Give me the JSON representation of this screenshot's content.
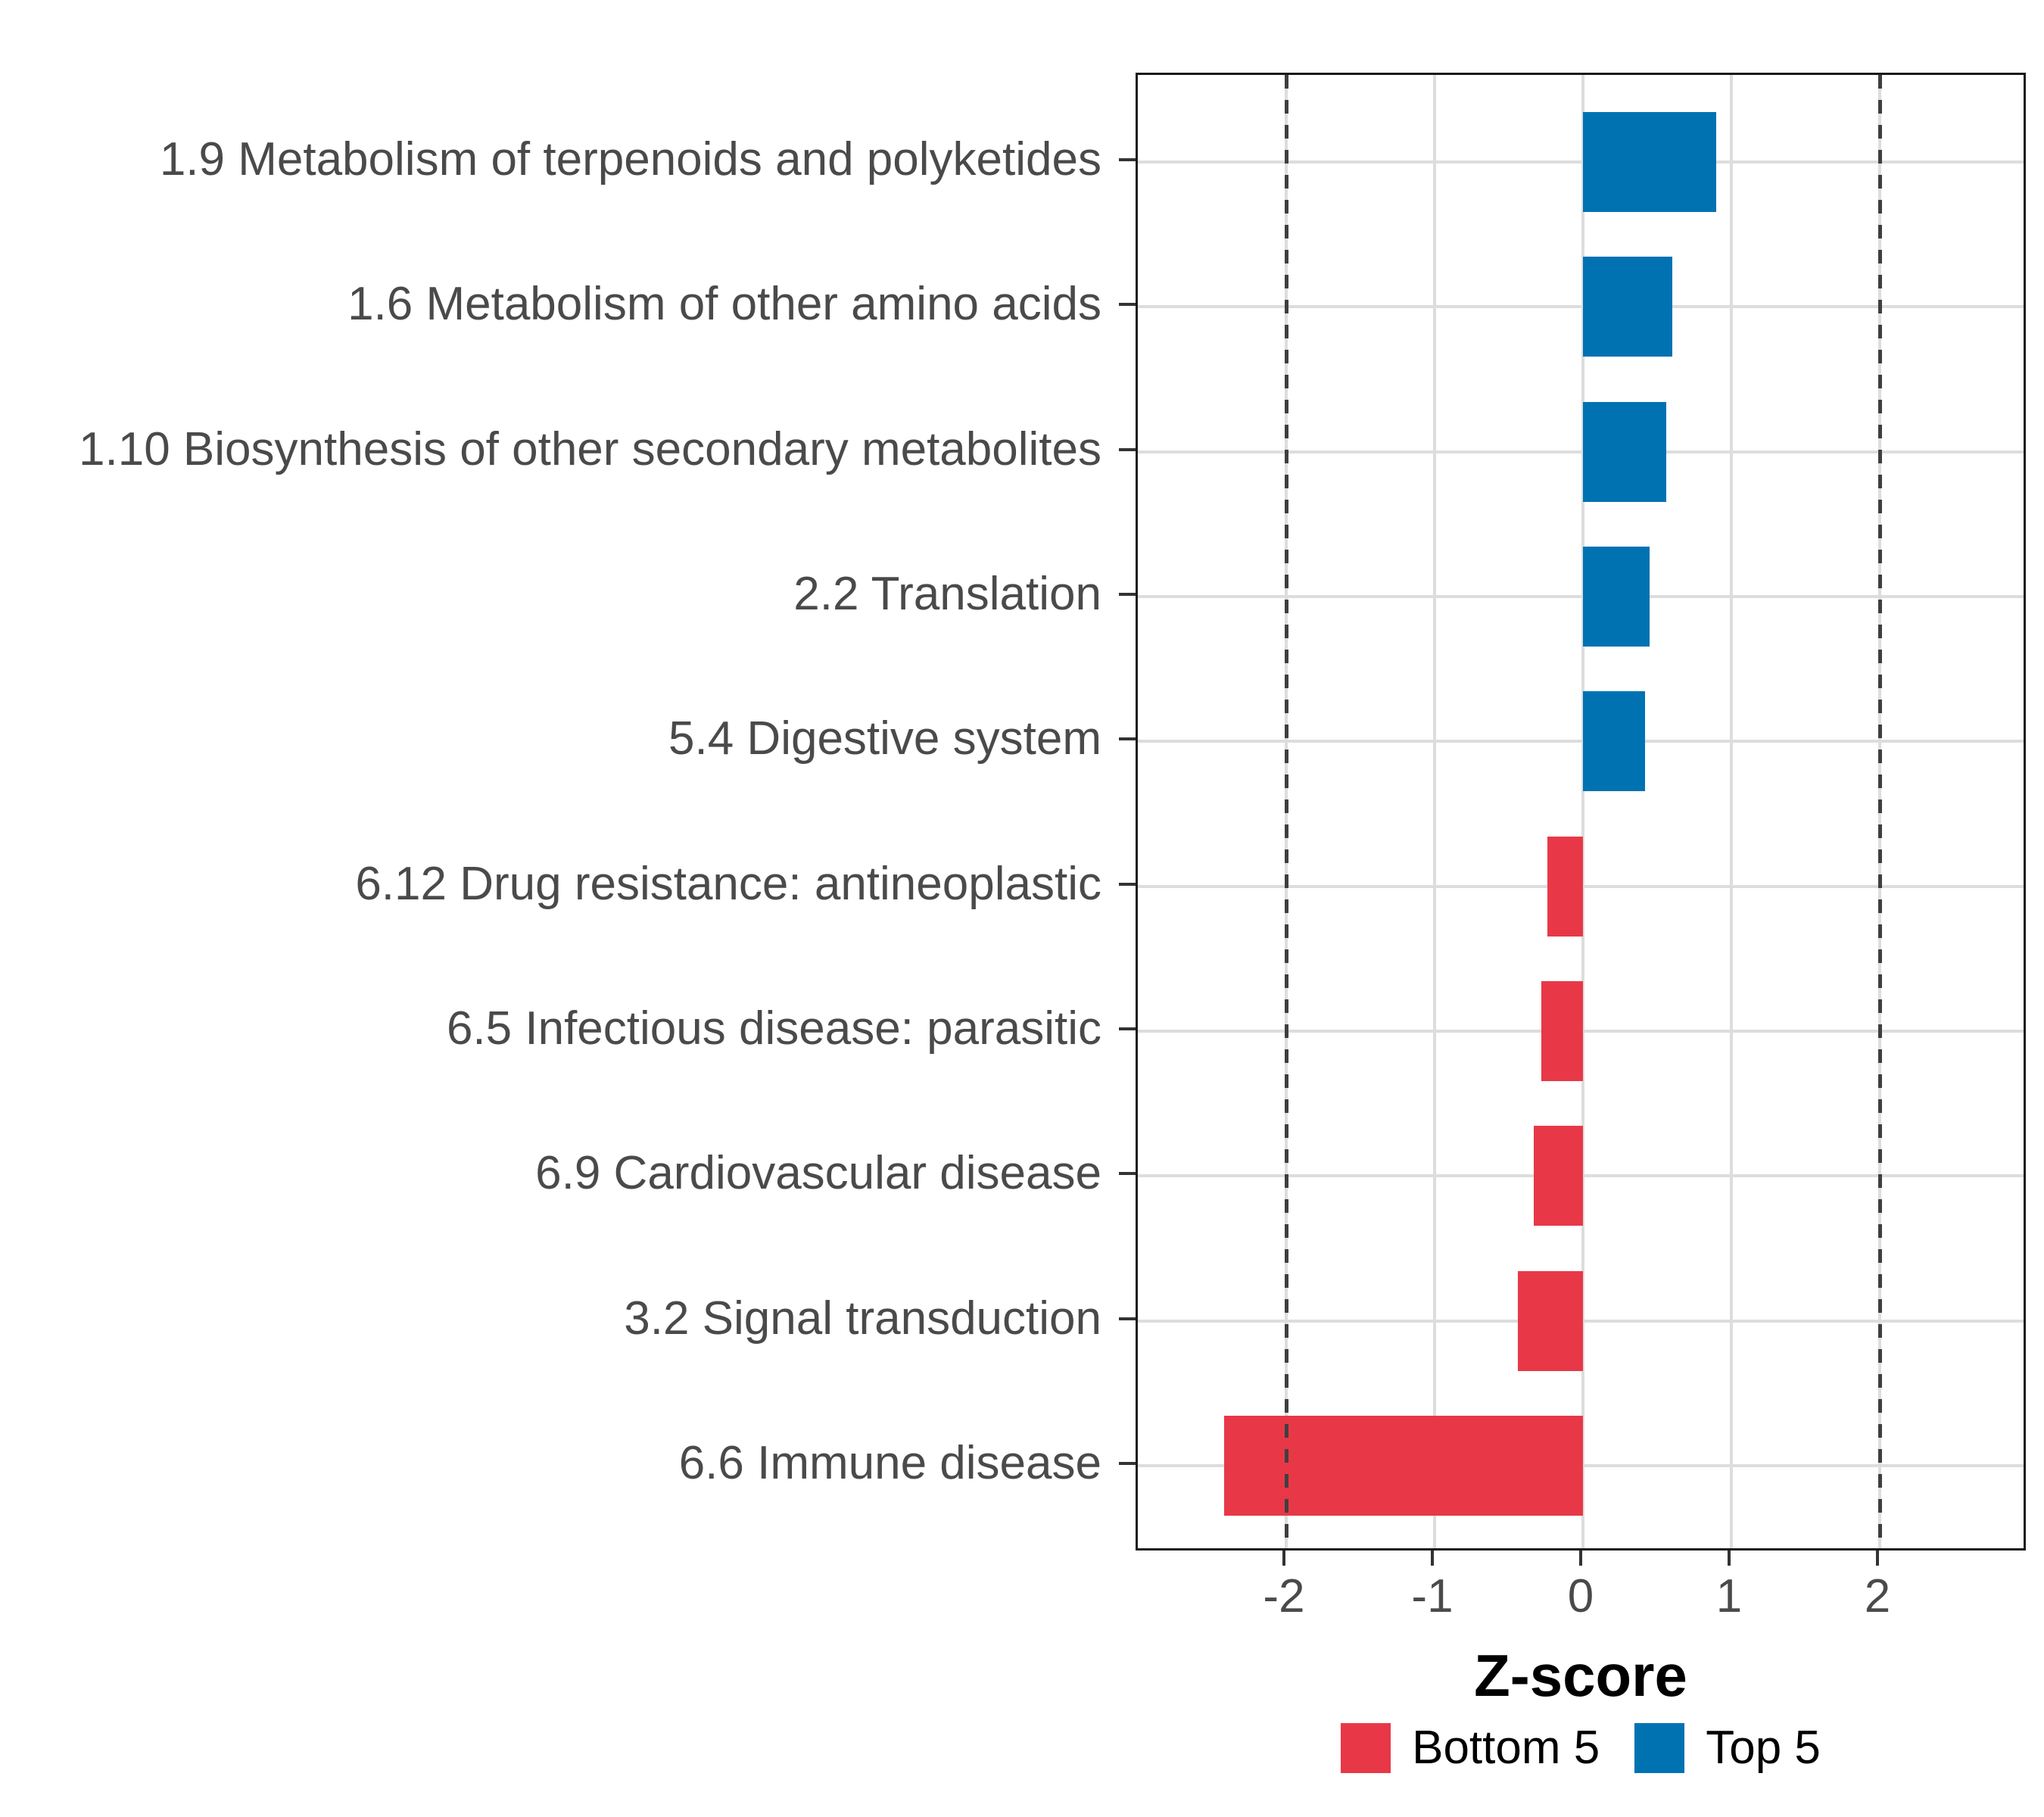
{
  "chart_data": {
    "type": "bar",
    "orientation": "horizontal",
    "title": "",
    "xlabel": "Z-score",
    "ylabel": "",
    "xlim": [
      -3,
      3
    ],
    "xticks": [
      -2,
      -1,
      0,
      1,
      2
    ],
    "xtick_labels": [
      "-2",
      "-1",
      "0",
      "1",
      "2"
    ],
    "reference_lines": [
      -2,
      2
    ],
    "grid": "major",
    "legend_position": "bottom",
    "categories": [
      "1.9 Metabolism of terpenoids and polyketides",
      "1.6 Metabolism of other amino acids",
      "1.10 Biosynthesis of other secondary metabolites",
      "2.2 Translation",
      "5.4 Digestive system",
      "6.12 Drug resistance: antineoplastic",
      "6.5 Infectious disease: parasitic",
      "6.9 Cardiovascular disease",
      "3.2 Signal transduction",
      "6.6 Immune disease"
    ],
    "values": [
      0.9,
      0.6,
      0.56,
      0.45,
      0.42,
      -0.24,
      -0.28,
      -0.33,
      -0.44,
      -2.42
    ],
    "groups": [
      "Top 5",
      "Top 5",
      "Top 5",
      "Top 5",
      "Top 5",
      "Bottom 5",
      "Bottom 5",
      "Bottom 5",
      "Bottom 5",
      "Bottom 5"
    ],
    "series_colors": {
      "Bottom 5": "#E83847",
      "Top 5": "#0072B2"
    }
  },
  "colors": {
    "bar_red": "#E83847",
    "bar_blue": "#0072B2",
    "gridline": "#dddddd",
    "reference_line": "#3f3f3f",
    "axis_text": "#4a4a4a",
    "panel_border": "#1a1a1a"
  },
  "legend": {
    "items": [
      {
        "label": "Bottom 5",
        "color": "#E83847"
      },
      {
        "label": "Top 5",
        "color": "#0072B2"
      }
    ]
  }
}
